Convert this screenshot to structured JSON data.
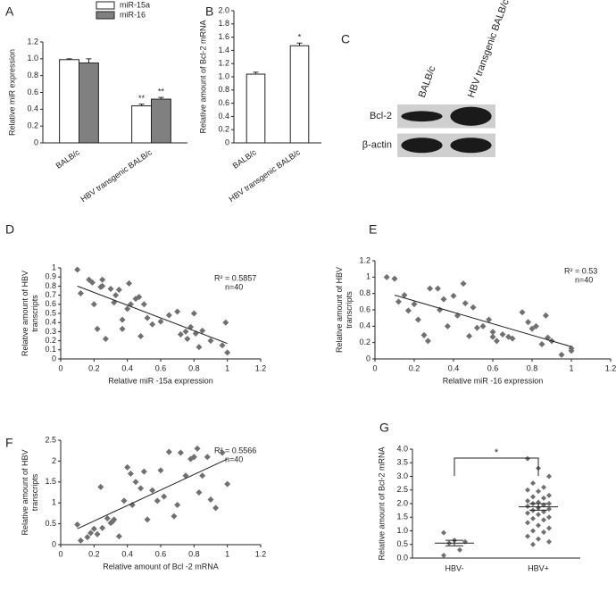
{
  "chart_data": [
    {
      "type": "bar",
      "label": "A",
      "y_label": [
        "Relative miR expression"
      ],
      "categories": [
        "BALB/c",
        "HBV transgenic BALB/c"
      ],
      "series": [
        {
          "name": "miR-15a",
          "color": "#ffffff",
          "values": [
            0.99,
            0.44
          ],
          "errors": [
            0.01,
            0.02
          ],
          "significance": [
            null,
            "**"
          ]
        },
        {
          "name": "miR-16",
          "color": "#808080",
          "values": [
            0.95,
            0.52
          ],
          "errors": [
            0.05,
            0.02
          ],
          "significance": [
            null,
            "**"
          ]
        }
      ],
      "ylim": [
        0,
        1.2
      ],
      "yticks": [
        0,
        0.2,
        0.4,
        0.6,
        0.8,
        {
          "value": 1,
          "label": "1.0"
        },
        1.2
      ]
    },
    {
      "type": "bar",
      "label": "B",
      "y_label": [
        "Relative amount of Bcl-2 mRNA"
      ],
      "categories": [
        "BALB/c",
        "HBV transgenic BALB/c"
      ],
      "series": [
        {
          "color": "#ffffff",
          "values": [
            1.04,
            1.47
          ],
          "errors": [
            0.03,
            0.04
          ],
          "significance": [
            null,
            "*"
          ]
        }
      ],
      "ylim": [
        0,
        2
      ],
      "yticks": [
        0,
        0.2,
        0.4,
        0.6,
        0.8,
        {
          "value": 1,
          "label": "1.0"
        },
        1.2,
        1.4,
        1.6,
        1.8,
        {
          "value": 2,
          "label": "2.0"
        }
      ]
    },
    {
      "type": "blot",
      "label": "C",
      "lanes": [
        "BALB/c",
        "HBV transgenic BALB/c"
      ],
      "rows": [
        "Bcl-2",
        "β-actin"
      ]
    },
    {
      "type": "scatter",
      "label": "D",
      "x_label": "Relative miR -15a expression",
      "y_label": [
        "Relative amount of HBV",
        "transcripts"
      ],
      "r_squared_label": "R² = 0.5857",
      "n_label": "n=40",
      "color": "#707070",
      "x": [
        0.1,
        0.12,
        0.17,
        0.19,
        0.2,
        0.22,
        0.24,
        0.25,
        0.25,
        0.27,
        0.3,
        0.32,
        0.33,
        0.35,
        0.37,
        0.37,
        0.4,
        0.41,
        0.42,
        0.45,
        0.47,
        0.48,
        0.5,
        0.52,
        0.55,
        0.6,
        0.65,
        0.7,
        0.72,
        0.75,
        0.76,
        0.78,
        0.8,
        0.81,
        0.83,
        0.85,
        0.9,
        0.97,
        0.99,
        1.0
      ],
      "values": [
        0.98,
        0.72,
        0.87,
        0.84,
        0.6,
        0.33,
        0.79,
        0.87,
        0.8,
        0.22,
        0.77,
        0.62,
        0.7,
        0.76,
        0.43,
        0.33,
        0.55,
        0.83,
        0.6,
        0.66,
        0.68,
        0.25,
        0.6,
        0.45,
        0.38,
        0.41,
        0.48,
        0.52,
        0.27,
        0.3,
        0.22,
        0.35,
        0.5,
        0.28,
        0.13,
        0.31,
        0.2,
        0.15,
        0.4,
        0.07
      ],
      "trendline": {
        "x": [
          0.1,
          1.0
        ],
        "values": [
          0.8,
          0.17
        ]
      },
      "xlim": [
        0,
        1.2
      ],
      "xticks": [
        0,
        0.2,
        0.4,
        0.6,
        0.8,
        1,
        1.2
      ],
      "ylim": [
        0,
        1
      ],
      "yticks": [
        0,
        0.1,
        0.2,
        0.3,
        0.4,
        0.5,
        0.6,
        0.7,
        0.8,
        0.9,
        1
      ]
    },
    {
      "type": "scatter",
      "label": "E",
      "x_label": "Relative miR -16 expression",
      "y_label": [
        "Relative amount of HBV",
        "transcripts"
      ],
      "r_squared_label": "R² = 0.53",
      "n_label": "n=40",
      "color": "#707070",
      "x": [
        0.06,
        0.1,
        0.12,
        0.15,
        0.17,
        0.2,
        0.22,
        0.25,
        0.27,
        0.28,
        0.32,
        0.33,
        0.35,
        0.37,
        0.4,
        0.42,
        0.45,
        0.46,
        0.48,
        0.5,
        0.52,
        0.55,
        0.58,
        0.6,
        0.62,
        0.65,
        0.68,
        0.7,
        0.75,
        0.78,
        0.8,
        0.82,
        0.85,
        0.87,
        0.88,
        0.9,
        0.95,
        1.0,
        1.0,
        0.6
      ],
      "values": [
        1.0,
        0.98,
        0.7,
        0.78,
        0.59,
        0.67,
        0.48,
        0.29,
        0.22,
        0.86,
        0.86,
        0.6,
        0.73,
        0.4,
        0.77,
        0.53,
        0.92,
        0.68,
        0.28,
        0.63,
        0.38,
        0.4,
        0.48,
        0.27,
        0.22,
        0.3,
        0.27,
        0.25,
        0.57,
        0.45,
        0.37,
        0.4,
        0.18,
        0.53,
        0.26,
        0.22,
        0.05,
        0.13,
        0.1,
        0.33
      ],
      "trendline": {
        "x": [
          0.1,
          1.0
        ],
        "values": [
          0.78,
          0.15
        ]
      },
      "xlim": [
        0,
        1.2
      ],
      "xticks": [
        0,
        0.2,
        0.4,
        0.6,
        0.8,
        1,
        1.2
      ],
      "ylim": [
        0,
        1.2
      ],
      "yticks": [
        0,
        0.2,
        0.4,
        0.6,
        0.8,
        1,
        1.2
      ]
    },
    {
      "type": "scatter",
      "label": "F",
      "x_label": "Relative amount of Bcl  -2 mRNA",
      "y_label": [
        "Relative amount of HBV",
        "transcripts"
      ],
      "r_squared_label": "R² = 0.5566",
      "n_label": "n=40",
      "color": "#707070",
      "x": [
        0.1,
        0.12,
        0.16,
        0.18,
        0.2,
        0.22,
        0.24,
        0.25,
        0.28,
        0.3,
        0.31,
        0.32,
        0.35,
        0.38,
        0.4,
        0.42,
        0.43,
        0.45,
        0.48,
        0.5,
        0.52,
        0.55,
        0.58,
        0.6,
        0.62,
        0.65,
        0.68,
        0.7,
        0.72,
        0.75,
        0.78,
        0.8,
        0.82,
        0.83,
        0.85,
        0.88,
        0.9,
        0.93,
        0.97,
        1.0
      ],
      "values": [
        0.48,
        0.1,
        0.18,
        0.28,
        0.38,
        0.25,
        1.38,
        0.4,
        0.63,
        0.52,
        0.55,
        0.6,
        0.2,
        1.05,
        1.85,
        1.7,
        0.95,
        1.5,
        1.35,
        1.75,
        0.6,
        1.3,
        1.05,
        1.78,
        1.15,
        2.22,
        0.68,
        0.95,
        2.2,
        1.65,
        2.05,
        2.1,
        2.3,
        1.25,
        1.65,
        2.1,
        1.08,
        0.88,
        2.2,
        1.45
      ],
      "trendline": {
        "x": [
          0.1,
          1.0
        ],
        "values": [
          0.38,
          2.05
        ]
      },
      "xlim": [
        0,
        1.2
      ],
      "xticks": [
        0,
        0.2,
        0.4,
        0.6,
        0.8,
        1,
        1.2
      ],
      "ylim": [
        0,
        2.5
      ],
      "yticks": [
        0,
        0.5,
        1,
        1.5,
        2,
        2.5
      ]
    },
    {
      "type": "dot",
      "label": "G",
      "y_label": [
        "Relative amount of Bcl-2 mRNA"
      ],
      "significance": "*",
      "color": "#707070",
      "categories": [
        "HBV-",
        "HBV+"
      ],
      "points": [
        [
          0.93,
          0.65,
          0.6,
          0.55,
          0.3,
          0.1
        ],
        [
          3.65,
          3.3,
          3.0,
          2.75,
          2.6,
          2.5,
          2.45,
          2.3,
          2.25,
          2.2,
          2.1,
          2.05,
          2.0,
          2.0,
          1.95,
          1.9,
          1.85,
          1.8,
          1.75,
          1.7,
          1.65,
          1.6,
          1.5,
          1.45,
          1.4,
          1.3,
          1.2,
          1.1,
          1.0,
          0.95,
          0.8,
          0.7,
          0.6,
          0.5
        ]
      ],
      "means": [
        0.55,
        1.88
      ],
      "errors": [
        0.1,
        0.12
      ],
      "ylim": [
        0,
        4
      ],
      "yticks": [
        {
          "value": 0,
          "label": "0.0"
        },
        {
          "value": 0.5,
          "label": "0.5"
        },
        {
          "value": 1,
          "label": "1.0"
        },
        {
          "value": 1.5,
          "label": "1.5"
        },
        {
          "value": 2,
          "label": "2.0"
        },
        {
          "value": 2.5,
          "label": "2.5"
        },
        {
          "value": 3,
          "label": "3.0"
        },
        {
          "value": 3.5,
          "label": "3.5"
        },
        {
          "value": 4,
          "label": "4.0"
        }
      ]
    }
  ]
}
